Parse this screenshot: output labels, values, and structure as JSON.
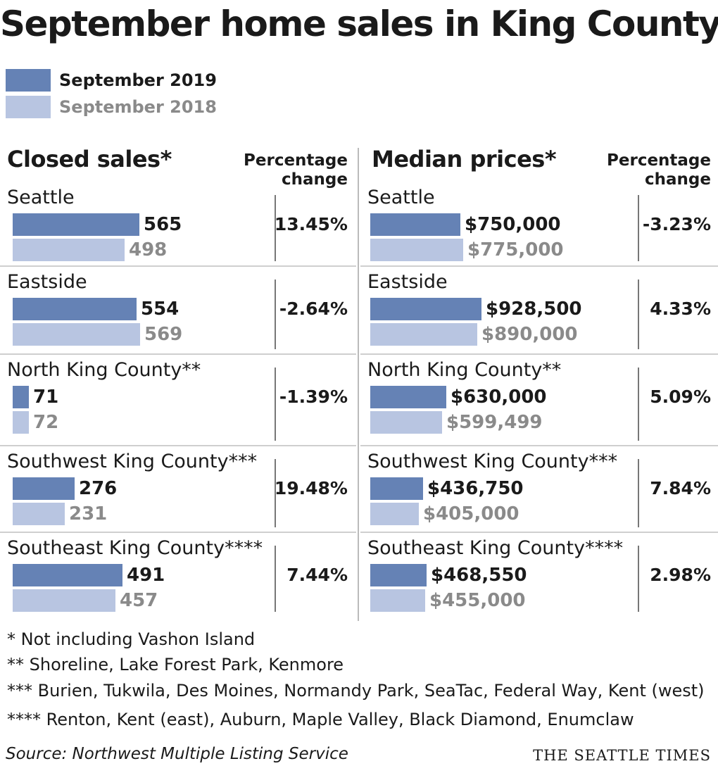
{
  "colors": {
    "y2019": "#6582b5",
    "y2018": "#b8c5e1",
    "text": "#1a1a1a",
    "muted": "#8a8a8a"
  },
  "chart_data": {
    "type": "bar",
    "title": "September home sales in King County",
    "legend": {
      "placement": "top-left",
      "entries": [
        "September 2019",
        "September 2018"
      ]
    },
    "closed_sales": {
      "header": "Closed sales*",
      "pct_header": [
        "Percentage",
        "change"
      ],
      "regions": [
        {
          "name": "Seattle",
          "v2019": 565,
          "v2018": 498,
          "label2019": "565",
          "label2018": "498",
          "pct": "13.45%"
        },
        {
          "name": "Eastside",
          "v2019": 554,
          "v2018": 569,
          "label2019": "554",
          "label2018": "569",
          "pct": "-2.64%"
        },
        {
          "name": "North King County**",
          "v2019": 71,
          "v2018": 72,
          "label2019": "71",
          "label2018": "72",
          "pct": "-1.39%"
        },
        {
          "name": "Southwest King County***",
          "v2019": 276,
          "v2018": 231,
          "label2019": "276",
          "label2018": "231",
          "pct": "19.48%"
        },
        {
          "name": "Southeast King County****",
          "v2019": 491,
          "v2018": 457,
          "label2019": "491",
          "label2018": "457",
          "pct": "7.44%"
        }
      ]
    },
    "median_prices": {
      "header": "Median prices*",
      "pct_header": [
        "Percentage",
        "change"
      ],
      "regions": [
        {
          "name": "Seattle",
          "v2019": 750000,
          "v2018": 775000,
          "label2019": "$750,000",
          "label2018": "$775,000",
          "pct": "-3.23%"
        },
        {
          "name": "Eastside",
          "v2019": 928500,
          "v2018": 890000,
          "label2019": "$928,500",
          "label2018": "$890,000",
          "pct": "4.33%"
        },
        {
          "name": "North King County**",
          "v2019": 630000,
          "v2018": 599499,
          "label2019": "$630,000",
          "label2018": "$599,499",
          "pct": "5.09%"
        },
        {
          "name": "Southwest King County***",
          "v2019": 436750,
          "v2018": 405000,
          "label2019": "$436,750",
          "label2018": "$405,000",
          "pct": "7.84%"
        },
        {
          "name": "Southeast King County****",
          "v2019": 468550,
          "v2018": 455000,
          "label2019": "$468,550",
          "label2018": "$455,000",
          "pct": "2.98%"
        }
      ]
    }
  },
  "notes": [
    "* Not including Vashon Island",
    "** Shoreline, Lake Forest Park, Kenmore",
    "*** Burien, Tukwila, Des Moines, Normandy Park, SeaTac, Federal Way, Kent (west)",
    "**** Renton, Kent (east), Auburn, Maple Valley, Black Diamond, Enumclaw"
  ],
  "source": "Source: Northwest Multiple Listing Service",
  "brand": "THE SEATTLE TIMES"
}
